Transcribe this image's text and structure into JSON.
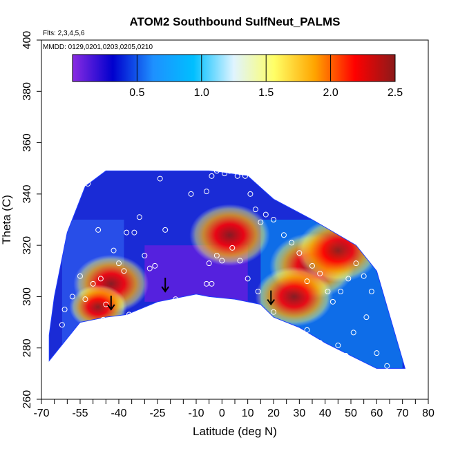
{
  "chart_data": {
    "type": "heatmap",
    "title": "ATOM2 Southbound SulfNeut_PALMS",
    "annotations": [
      "Flts: 2,3,4,5,6",
      "MMDD: 0129,0201,0203,0205,0210"
    ],
    "xlabel": "Latitude (deg N)",
    "ylabel": "Theta (C)",
    "xlim": [
      -70,
      80
    ],
    "ylim": [
      260,
      400
    ],
    "x_ticks": [
      -70,
      -55,
      -40,
      -25,
      -10,
      0,
      10,
      20,
      30,
      40,
      50,
      60,
      70,
      80
    ],
    "x_tick_labels": [
      "-70",
      "-55",
      "-40",
      "-25",
      "-10",
      "0",
      "10",
      "20",
      "30",
      "40",
      "50",
      "60",
      "70",
      "80"
    ],
    "x_minor_ticks": [
      -65,
      -60,
      -50,
      -45,
      -35,
      -30,
      -20,
      -15,
      -5,
      5,
      15,
      25,
      35,
      45,
      55,
      65,
      75
    ],
    "y_ticks": [
      260,
      280,
      300,
      320,
      340,
      360,
      380,
      400
    ],
    "y_tick_labels": [
      "260",
      "280",
      "300",
      "320",
      "340",
      "360",
      "380",
      "400"
    ],
    "colorbar": {
      "range": [
        0,
        2.5
      ],
      "ticks": [
        0.5,
        1.0,
        1.5,
        2.0,
        2.5
      ],
      "tick_labels": [
        "0.5",
        "1.0",
        "1.5",
        "2.0",
        "2.5"
      ],
      "colors": [
        "#8a2be2",
        "#0000cd",
        "#1e90ff",
        "#00bfff",
        "#e0f4ff",
        "#ffff66",
        "#ffa500",
        "#ff0000",
        "#8b1a1a"
      ]
    },
    "field_boundary": [
      [
        -67,
        275
      ],
      [
        -55,
        290
      ],
      [
        -45,
        292
      ],
      [
        -37,
        293
      ],
      [
        -25,
        298
      ],
      [
        -10,
        301
      ],
      [
        -5,
        300
      ],
      [
        5,
        299
      ],
      [
        15,
        297
      ],
      [
        20,
        292
      ],
      [
        30,
        288
      ],
      [
        40,
        282
      ],
      [
        50,
        277
      ],
      [
        60,
        272
      ],
      [
        71,
        272
      ],
      [
        60,
        310
      ],
      [
        52,
        320
      ],
      [
        35,
        330
      ],
      [
        20,
        338
      ],
      [
        10,
        347
      ],
      [
        -5,
        349
      ],
      [
        -20,
        349
      ],
      [
        -45,
        349
      ],
      [
        -53,
        343
      ],
      [
        -60,
        325
      ],
      [
        -65,
        300
      ],
      [
        -67,
        285
      ]
    ],
    "hotspots": [
      {
        "x": 35,
        "y": 312,
        "value": 2.4
      },
      {
        "x": 45,
        "y": 318,
        "value": 2.3
      },
      {
        "x": 28,
        "y": 300,
        "value": 2.1
      },
      {
        "x": 3,
        "y": 324,
        "value": 2.2
      },
      {
        "x": -43,
        "y": 305,
        "value": 2.0
      },
      {
        "x": -48,
        "y": 296,
        "value": 1.3
      }
    ],
    "observations": [
      [
        -55,
        345
      ],
      [
        -52,
        344
      ],
      [
        -48,
        326
      ],
      [
        -42,
        318
      ],
      [
        -40,
        313
      ],
      [
        -37,
        325
      ],
      [
        -34,
        325
      ],
      [
        -32,
        331
      ],
      [
        -30,
        316
      ],
      [
        -28,
        311
      ],
      [
        -26,
        312
      ],
      [
        -24,
        346
      ],
      [
        -22,
        326
      ],
      [
        -18,
        299
      ],
      [
        -12,
        340
      ],
      [
        -6,
        341
      ],
      [
        -4,
        347
      ],
      [
        -2,
        349
      ],
      [
        1,
        348
      ],
      [
        3,
        349
      ],
      [
        6,
        347
      ],
      [
        9,
        347
      ],
      [
        11,
        340
      ],
      [
        13,
        334
      ],
      [
        15,
        329
      ],
      [
        17,
        332
      ],
      [
        20,
        330
      ],
      [
        24,
        324
      ],
      [
        27,
        321
      ],
      [
        30,
        317
      ],
      [
        33,
        306
      ],
      [
        35,
        312
      ],
      [
        38,
        309
      ],
      [
        41,
        302
      ],
      [
        43,
        298
      ],
      [
        46,
        302
      ],
      [
        49,
        307
      ],
      [
        52,
        313
      ],
      [
        55,
        308
      ],
      [
        58,
        302
      ],
      [
        -62,
        289
      ],
      [
        -61,
        295
      ],
      [
        -58,
        300
      ],
      [
        -55,
        308
      ],
      [
        -53,
        299
      ],
      [
        -50,
        305
      ],
      [
        -47,
        307
      ],
      [
        -45,
        297
      ],
      [
        -44,
        288
      ],
      [
        -38,
        310
      ],
      [
        -6,
        305
      ],
      [
        -5,
        313
      ],
      [
        -4,
        305
      ],
      [
        -2,
        316
      ],
      [
        0,
        314
      ],
      [
        4,
        319
      ],
      [
        7,
        314
      ],
      [
        10,
        307
      ],
      [
        14,
        302
      ],
      [
        20,
        294
      ],
      [
        26,
        288
      ],
      [
        33,
        287
      ],
      [
        38,
        282
      ],
      [
        45,
        281
      ],
      [
        48,
        277
      ],
      [
        51,
        286
      ],
      [
        56,
        292
      ],
      [
        60,
        278
      ],
      [
        64,
        273
      ],
      [
        -57,
        283
      ],
      [
        -46,
        291
      ],
      [
        -36,
        293
      ]
    ],
    "markers": [
      {
        "x": -43,
        "y": 295,
        "label": "arrow"
      },
      {
        "x": -22,
        "y": 302,
        "label": "arrow"
      },
      {
        "x": 19,
        "y": 297,
        "label": "arrow"
      }
    ]
  }
}
